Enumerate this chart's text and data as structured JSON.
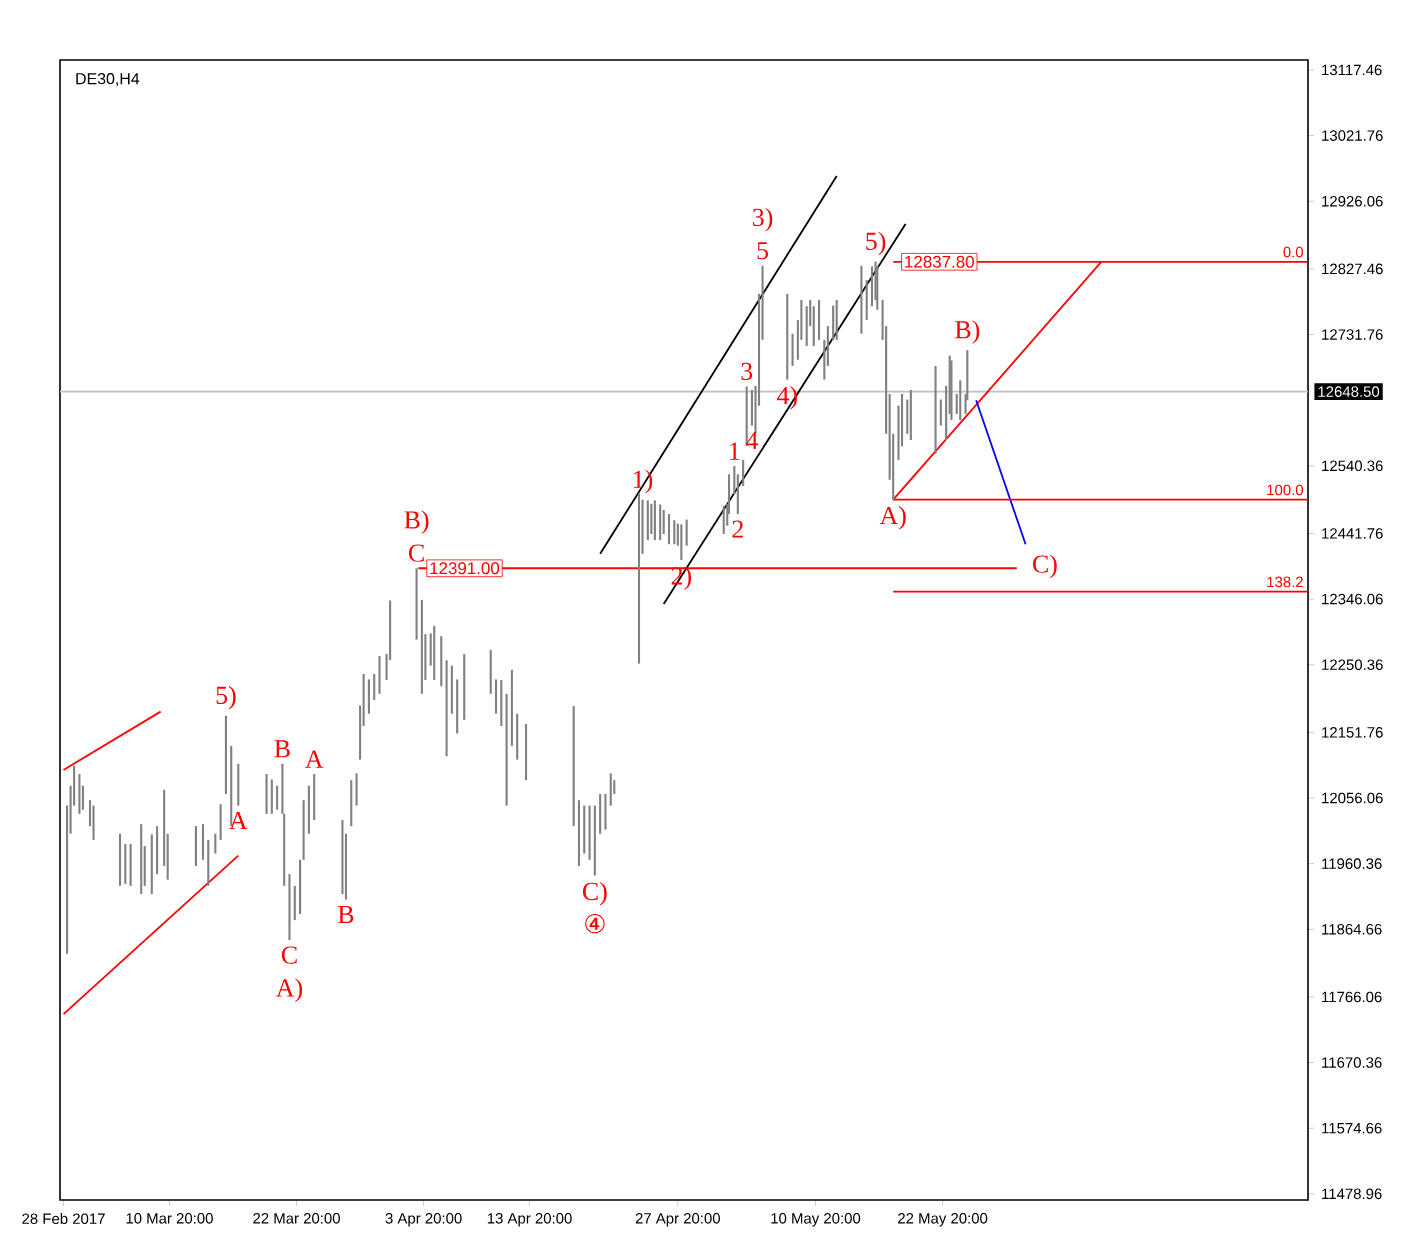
{
  "chart_data": {
    "type": "bar",
    "title": "DE30,H4",
    "color": "#808080",
    "x": [
      "2017-03-01T04:00",
      "2017-03-01T12:00",
      "2017-03-01T20:00",
      "2017-03-02T08:00",
      "2017-03-02T16:00",
      "2017-03-03T08:00",
      "2017-03-03T16:00",
      "2017-03-06T04:00",
      "2017-03-06T16:00",
      "2017-03-07T04:00",
      "2017-03-08T04:00",
      "2017-03-08T12:00",
      "2017-03-09T04:00",
      "2017-03-09T16:00",
      "2017-03-10T08:00",
      "2017-03-10T16:00",
      "2017-03-13T08:00",
      "2017-03-14T00:00",
      "2017-03-14T12:00",
      "2017-03-15T04:00",
      "2017-03-15T16:00",
      "2017-03-16T04:00",
      "2017-03-16T16:00",
      "2017-03-17T08:00",
      "2017-03-20T00:00",
      "2017-03-20T12:00",
      "2017-03-21T00:00",
      "2017-03-21T12:00",
      "2017-03-21T16:00",
      "2017-03-22T04:00",
      "2017-03-22T16:00",
      "2017-03-23T04:00",
      "2017-03-23T12:00",
      "2017-03-24T00:00",
      "2017-03-24T12:00",
      "2017-03-27T04:00",
      "2017-03-27T12:00",
      "2017-03-28T00:00",
      "2017-03-28T12:00",
      "2017-03-28T20:00",
      "2017-03-29T04:00",
      "2017-03-29T16:00",
      "2017-03-30T04:00",
      "2017-03-30T16:00",
      "2017-03-31T08:00",
      "2017-03-31T16:00",
      "2017-04-03T04:00",
      "2017-04-03T16:00",
      "2017-04-04T00:00",
      "2017-04-04T12:00",
      "2017-04-04T20:00",
      "2017-04-05T12:00",
      "2017-04-06T00:00",
      "2017-04-06T12:00",
      "2017-04-07T00:00",
      "2017-04-07T16:00",
      "2017-04-10T04:00",
      "2017-04-10T16:00",
      "2017-04-11T04:00",
      "2017-04-11T16:00",
      "2017-04-12T04:00",
      "2017-04-12T16:00",
      "2017-04-13T12:00",
      "2017-04-18T00:00",
      "2017-04-18T12:00",
      "2017-04-19T00:00",
      "2017-04-19T12:00",
      "2017-04-20T00:00",
      "2017-04-20T12:00",
      "2017-04-21T00:00",
      "2017-04-21T12:00",
      "2017-04-21T20:00",
      "2017-04-24T04:00",
      "2017-04-24T12:00",
      "2017-04-25T00:00",
      "2017-04-25T08:00",
      "2017-04-25T16:00",
      "2017-04-26T04:00",
      "2017-04-26T12:00",
      "2017-04-27T00:00",
      "2017-04-27T12:00",
      "2017-04-27T20:00",
      "2017-04-28T04:00",
      "2017-04-28T16:00",
      "2017-05-02T04:00",
      "2017-05-02T12:00",
      "2017-05-02T16:00",
      "2017-05-03T04:00",
      "2017-05-03T12:00",
      "2017-05-04T00:00",
      "2017-05-04T08:00",
      "2017-05-04T20:00",
      "2017-05-05T04:00",
      "2017-05-05T12:00",
      "2017-05-05T20:00",
      "2017-05-08T04:00",
      "2017-05-08T16:00",
      "2017-05-09T04:00",
      "2017-05-09T12:00",
      "2017-05-10T00:00",
      "2017-05-10T08:00",
      "2017-05-10T16:00",
      "2017-05-11T04:00",
      "2017-05-11T16:00",
      "2017-05-12T00:00",
      "2017-05-12T12:00",
      "2017-05-12T20:00",
      "2017-05-15T04:00",
      "2017-05-15T16:00",
      "2017-05-16T04:00",
      "2017-05-16T12:00",
      "2017-05-16T16:00",
      "2017-05-17T04:00",
      "2017-05-17T12:00",
      "2017-05-17T20:00",
      "2017-05-18T04:00",
      "2017-05-18T16:00",
      "2017-05-19T00:00",
      "2017-05-19T12:00",
      "2017-05-19T20:00",
      "2017-05-22T04:00",
      "2017-05-22T16:00",
      "2017-05-23T04:00",
      "2017-05-23T12:00",
      "2017-05-23T16:00",
      "2017-05-24T04:00",
      "2017-05-24T12:00",
      "2017-05-25T00:00",
      "2017-05-25T04:00"
    ],
    "base": [
      11829,
      12004,
      12045,
      12033,
      12039,
      12015,
      11995,
      11928,
      11931,
      11928,
      11916,
      11928,
      11916,
      11945,
      11957,
      11937,
      11957,
      11966,
      11928,
      11975,
      11995,
      12062,
      12015,
      12045,
      12033,
      12033,
      12039,
      12033,
      11928,
      11849,
      11878,
      11887,
      11966,
      12004,
      12024,
      11916,
      11908,
      12015,
      12045,
      12112,
      12161,
      12179,
      12199,
      12208,
      12228,
      12257,
      12287,
      12208,
      12228,
      12249,
      12228,
      12219,
      12117,
      12179,
      12150,
      12170,
      12208,
      12179,
      12161,
      12045,
      12132,
      12112,
      12082,
      12015,
      11957,
      11975,
      11966,
      11943,
      12004,
      12010,
      12045,
      12062,
      12252,
      12412,
      12432,
      12441,
      12432,
      12432,
      12441,
      12426,
      12426,
      12424,
      12403,
      12424,
      12441,
      12453,
      12470,
      12499,
      12470,
      12511,
      12569,
      12599,
      12587,
      12628,
      12724,
      12666,
      12686,
      12695,
      12724,
      12715,
      12744,
      12715,
      12724,
      12666,
      12686,
      12724,
      12724,
      12733,
      12753,
      12773,
      12782,
      12768,
      12724,
      12587,
      12520,
      12491,
      12549,
      12569,
      12587,
      12578,
      12558,
      12599,
      12578,
      12616,
      12607,
      12616,
      12607,
      12616,
      12636
    ],
    "values": [
      216,
      70,
      58,
      58,
      35,
      38,
      50,
      76,
      58,
      61,
      102,
      58,
      87,
      70,
      111,
      67,
      58,
      52,
      67,
      29,
      52,
      114,
      117,
      61,
      58,
      50,
      35,
      73,
      105,
      96,
      50,
      79,
      87,
      70,
      67,
      108,
      96,
      67,
      47,
      79,
      76,
      50,
      38,
      55,
      38,
      87,
      104,
      137,
      67,
      47,
      79,
      73,
      140,
      70,
      79,
      96,
      64,
      50,
      67,
      163,
      111,
      67,
      82,
      175,
      96,
      70,
      79,
      102,
      58,
      52,
      47,
      20,
      248,
      79,
      58,
      44,
      58,
      52,
      35,
      44,
      35,
      32,
      52,
      38,
      41,
      32,
      58,
      41,
      58,
      38,
      87,
      52,
      70,
      163,
      108,
      125,
      47,
      58,
      58,
      58,
      38,
      58,
      58,
      58,
      58,
      50,
      58,
      99,
      58,
      58,
      56,
      64,
      58,
      157,
      125,
      96,
      79,
      76,
      50,
      73,
      128,
      38,
      79,
      85,
      87,
      29,
      58,
      29,
      73
    ],
    "series": [
      {
        "type": "line",
        "color": "#ff0000",
        "x": [
          "2017-02-28T20:00",
          "2017-03-10T00:00"
        ],
        "values": [
          12097,
          12182
        ]
      },
      {
        "type": "line",
        "color": "#ff0000",
        "x": [
          "2017-02-28T20:00",
          "2017-03-17T08:00"
        ],
        "values": [
          11741,
          11972
        ]
      },
      {
        "type": "line",
        "color": "#000000",
        "x": [
          "2017-04-20T12:00",
          "2017-05-12T20:00"
        ],
        "values": [
          12412,
          12963
        ]
      },
      {
        "type": "line",
        "color": "#000000",
        "x": [
          "2017-04-26T12:00",
          "2017-05-19T08:00"
        ],
        "values": [
          12339,
          12893
        ]
      },
      {
        "type": "line",
        "color": "#ff0000",
        "x": [
          "2017-05-18T04:00",
          "2017-06-06T20:00"
        ],
        "values": [
          12491,
          12838
        ]
      },
      {
        "type": "line",
        "color": "#0000ff",
        "x": [
          "2017-05-26T00:00",
          "2017-05-30T16:00"
        ],
        "values": [
          12636,
          12426
        ]
      },
      {
        "type": "line",
        "color": "#ff0000",
        "x": [
          "2017-04-03T08:00",
          "2017-05-29T20:00"
        ],
        "values": [
          12391,
          12391
        ]
      },
      {
        "type": "line",
        "color": "#ff0000",
        "x": [
          "2017-05-18T04:00",
          "2017-06-26T08:00"
        ],
        "values": [
          12837.8,
          12837.8
        ]
      },
      {
        "type": "line",
        "color": "#ff0000",
        "x": [
          "2017-05-18T04:00",
          "2017-06-26T08:00"
        ],
        "values": [
          12491,
          12491
        ]
      },
      {
        "type": "line",
        "color": "#ff0000",
        "x": [
          "2017-05-18T04:00",
          "2017-06-26T08:00"
        ],
        "values": [
          12357,
          12357
        ]
      }
    ],
    "xlim": [
      "2017-02-28T12:00",
      "2017-06-26T08:00"
    ],
    "ylim": [
      11470,
      13132
    ],
    "xticks": [
      {
        "value": "2017-02-28T20:00",
        "label": "28 Feb 2017"
      },
      {
        "value": "2017-03-10T20:00",
        "label": "10 Mar 20:00"
      },
      {
        "value": "2017-03-22T20:00",
        "label": "22 Mar 20:00"
      },
      {
        "value": "2017-04-03T20:00",
        "label": "3 Apr 20:00"
      },
      {
        "value": "2017-04-13T20:00",
        "label": "13 Apr 20:00"
      },
      {
        "value": "2017-04-27T20:00",
        "label": "27 Apr 20:00"
      },
      {
        "value": "2017-05-10T20:00",
        "label": "10 May 20:00"
      },
      {
        "value": "2017-05-22T20:00",
        "label": "22 May 20:00"
      }
    ],
    "yticks": [
      11478.96,
      11574.66,
      11670.36,
      11766.06,
      11864.66,
      11960.36,
      12056.06,
      12151.76,
      12250.36,
      12346.06,
      12441.76,
      12540.36,
      12731.76,
      12827.46,
      12926.06,
      13021.76,
      13117.46
    ],
    "ref_lines": [
      {
        "axis": "y",
        "value": 12648.5,
        "label": "12648.50",
        "color": "#c0c0c0"
      }
    ],
    "annotations": [
      {
        "text": "5)",
        "x": "2017-03-16T04:00",
        "y": 12176
      },
      {
        "text": "B",
        "x": "2017-03-21T12:00",
        "y": 12106
      },
      {
        "text": "A",
        "x": "2017-03-17T08:00",
        "y": 12045
      },
      {
        "text": "A",
        "x": "2017-03-24T12:00",
        "y": 12091
      },
      {
        "text": "C",
        "x": "2017-03-22T04:00",
        "y": 11849
      },
      {
        "text": "A)",
        "x": "2017-03-22T04:00",
        "y": 11849
      },
      {
        "text": "B",
        "x": "2017-03-27T12:00",
        "y": 11908
      },
      {
        "text": "C",
        "x": "2017-04-03T04:00",
        "y": 12391
      },
      {
        "text": "B)",
        "x": "2017-04-03T04:00",
        "y": 12391
      },
      {
        "text": "12391.00",
        "x": "2017-04-03T08:00",
        "y": 12391
      },
      {
        "text": "C)",
        "x": "2017-04-20T00:00",
        "y": 11943
      },
      {
        "text": "④",
        "x": "2017-04-20T00:00",
        "y": 11943
      },
      {
        "text": "1)",
        "x": "2017-04-24T12:00",
        "y": 12491
      },
      {
        "text": "2)",
        "x": "2017-04-28T04:00",
        "y": 12403
      },
      {
        "text": "1",
        "x": "2017-05-03T04:00",
        "y": 12540
      },
      {
        "text": "2",
        "x": "2017-05-03T12:00",
        "y": 12470
      },
      {
        "text": "3",
        "x": "2017-05-04T08:00",
        "y": 12656
      },
      {
        "text": "4",
        "x": "2017-05-04T20:00",
        "y": 12599
      },
      {
        "text": "4)",
        "x": "2017-05-08T04:00",
        "y": 12666
      },
      {
        "text": "5",
        "x": "2017-05-05T20:00",
        "y": 12832
      },
      {
        "text": "3)",
        "x": "2017-05-05T20:00",
        "y": 12832
      },
      {
        "text": "5)",
        "x": "2017-05-16T12:00",
        "y": 12838
      },
      {
        "text": "12837.80",
        "x": "2017-05-18T04:00",
        "y": 12837.8
      },
      {
        "text": "A)",
        "x": "2017-05-18T04:00",
        "y": 12491
      },
      {
        "text": "B)",
        "x": "2017-05-25T04:00",
        "y": 12709
      },
      {
        "text": "C)",
        "x": "2017-05-30T16:00",
        "y": 12426
      },
      {
        "text": "0.0",
        "x": "2017-06-26T08:00",
        "y": 12837.8
      },
      {
        "text": "100.0",
        "x": "2017-06-26T08:00",
        "y": 12491
      },
      {
        "text": "138.2",
        "x": "2017-06-26T08:00",
        "y": 12357
      }
    ]
  }
}
